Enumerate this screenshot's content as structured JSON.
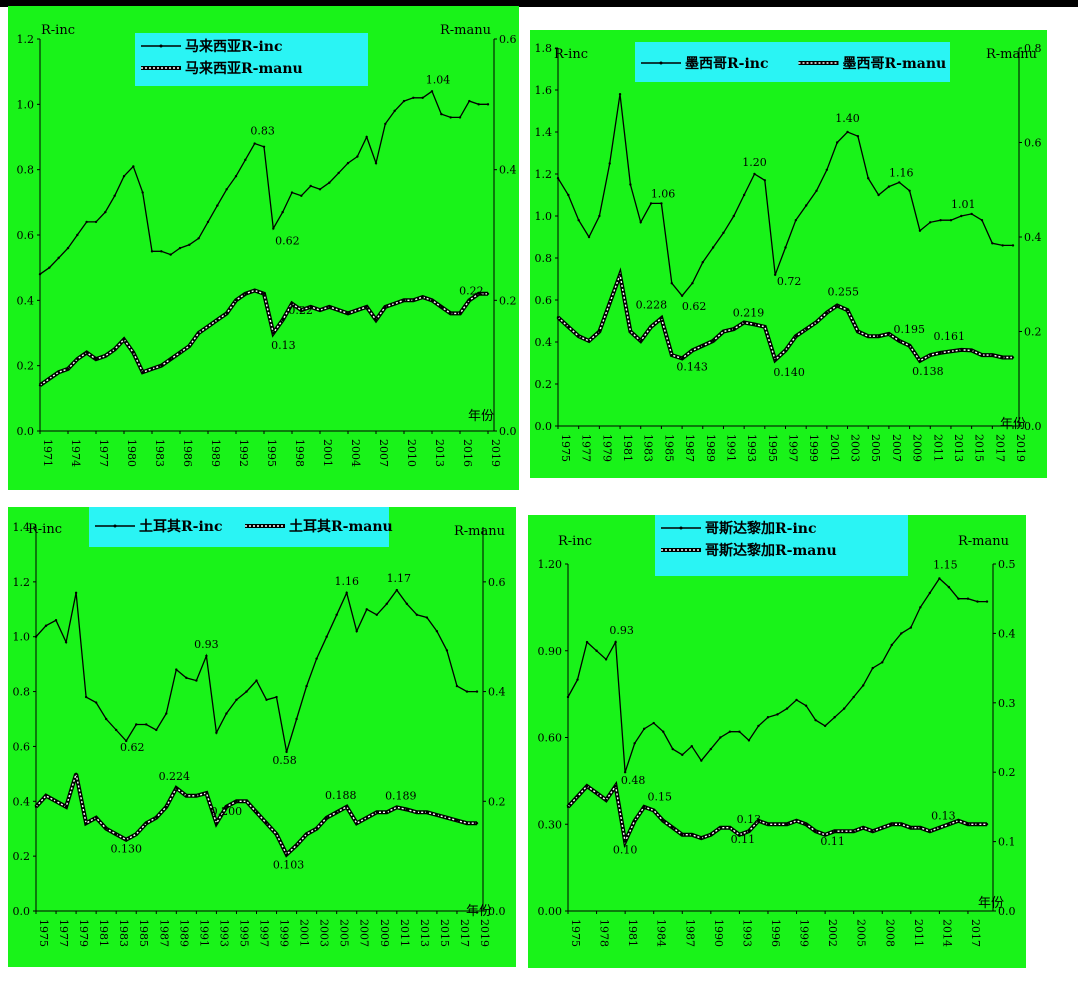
{
  "colors": {
    "panel_bg": "#19f319",
    "legend_bg": "#2af4f4",
    "line": "#000000",
    "manu_line": "#000000",
    "manu_dash": "#ffffff"
  },
  "chart_data": [
    {
      "type": "line",
      "left_axis": {
        "title": "R-inc",
        "ylim": [
          0,
          1.2
        ],
        "ticks": [
          "0.0",
          "0.2",
          "0.4",
          "0.6",
          "0.8",
          "1.0",
          "1.2"
        ]
      },
      "right_axis": {
        "title": "R-manu",
        "ylim": [
          0,
          0.6
        ],
        "ticks": [
          "0.0",
          "0.2",
          "0.4",
          "0.6"
        ]
      },
      "x_title": "年份",
      "x": [
        1971,
        1972,
        1973,
        1974,
        1975,
        1976,
        1977,
        1978,
        1979,
        1980,
        1981,
        1982,
        1983,
        1984,
        1985,
        1986,
        1987,
        1988,
        1989,
        1990,
        1991,
        1992,
        1993,
        1994,
        1995,
        1996,
        1997,
        1998,
        1999,
        2000,
        2001,
        2002,
        2003,
        2004,
        2005,
        2006,
        2007,
        2008,
        2009,
        2010,
        2011,
        2012,
        2013,
        2014,
        2015,
        2016,
        2017,
        2018,
        2019
      ],
      "x_ticks": [
        "1971",
        "1974",
        "1977",
        "1980",
        "1983",
        "1986",
        "1989",
        "1992",
        "1995",
        "1998",
        "2001",
        "2004",
        "2007",
        "2010",
        "2013",
        "2016",
        "2019"
      ],
      "series": [
        {
          "name": "马来西亚R-inc",
          "axis": "left",
          "values": [
            0.48,
            0.5,
            0.53,
            0.56,
            0.6,
            0.64,
            0.64,
            0.67,
            0.72,
            0.78,
            0.81,
            0.73,
            0.55,
            0.55,
            0.54,
            0.56,
            0.57,
            0.59,
            0.64,
            0.69,
            0.74,
            0.78,
            0.83,
            0.88,
            0.87,
            0.62,
            0.67,
            0.73,
            0.72,
            0.75,
            0.74,
            0.76,
            0.79,
            0.82,
            0.84,
            0.9,
            0.82,
            0.94,
            0.98,
            1.01,
            1.02,
            1.02,
            1.04,
            0.97,
            0.96,
            0.96,
            1.01,
            1.0,
            1.0
          ]
        },
        {
          "name": "马来西亚R-manu",
          "axis": "right",
          "values": [
            0.07,
            0.08,
            0.09,
            0.095,
            0.11,
            0.12,
            0.11,
            0.115,
            0.125,
            0.14,
            0.12,
            0.09,
            0.095,
            0.1,
            0.11,
            0.12,
            0.13,
            0.15,
            0.16,
            0.17,
            0.18,
            0.2,
            0.21,
            0.215,
            0.21,
            0.15,
            0.17,
            0.195,
            0.185,
            0.19,
            0.185,
            0.19,
            0.185,
            0.18,
            0.185,
            0.19,
            0.17,
            0.19,
            0.195,
            0.2,
            0.2,
            0.205,
            0.2,
            0.19,
            0.18,
            0.18,
            0.2,
            0.21,
            0.21
          ]
        }
      ],
      "labels": [
        "0.83",
        "0.62",
        "1.04",
        "0.22",
        "0.13",
        "0.22"
      ]
    },
    {
      "type": "line",
      "left_axis": {
        "title": "R-inc",
        "ylim": [
          0,
          1.8
        ],
        "ticks": [
          "0.0",
          "0.2",
          "0.4",
          "0.6",
          "0.8",
          "1.0",
          "1.2",
          "1.4",
          "1.6",
          "1.8"
        ]
      },
      "right_axis": {
        "title": "R-manu",
        "ylim": [
          0,
          0.8
        ],
        "ticks": [
          "0.0",
          "0.2",
          "0.4",
          "0.6",
          "0.8"
        ]
      },
      "x_title": "年份",
      "x": [
        1975,
        1976,
        1977,
        1978,
        1979,
        1980,
        1981,
        1982,
        1983,
        1984,
        1985,
        1986,
        1987,
        1988,
        1989,
        1990,
        1991,
        1992,
        1993,
        1994,
        1995,
        1996,
        1997,
        1998,
        1999,
        2000,
        2001,
        2002,
        2003,
        2004,
        2005,
        2006,
        2007,
        2008,
        2009,
        2010,
        2011,
        2012,
        2013,
        2014,
        2015,
        2016,
        2017,
        2018,
        2019
      ],
      "x_ticks": [
        "1975",
        "1977",
        "1979",
        "1981",
        "1983",
        "1985",
        "1987",
        "1989",
        "1991",
        "1993",
        "1995",
        "1997",
        "1999",
        "2001",
        "2003",
        "2005",
        "2007",
        "2009",
        "2011",
        "2013",
        "2015",
        "2017",
        "2019"
      ],
      "series": [
        {
          "name": "墨西哥R-inc",
          "axis": "left",
          "values": [
            1.18,
            1.1,
            0.98,
            0.9,
            1.0,
            1.25,
            1.58,
            1.15,
            0.97,
            1.06,
            1.06,
            0.68,
            0.62,
            0.68,
            0.78,
            0.85,
            0.92,
            1.0,
            1.1,
            1.2,
            1.17,
            0.72,
            0.85,
            0.98,
            1.05,
            1.12,
            1.22,
            1.35,
            1.4,
            1.38,
            1.18,
            1.1,
            1.14,
            1.16,
            1.12,
            0.93,
            0.97,
            0.98,
            0.98,
            1.0,
            1.01,
            0.98,
            0.87,
            0.86,
            0.86
          ]
        },
        {
          "name": "墨西哥R-manu",
          "axis": "right",
          "values": [
            0.23,
            0.21,
            0.19,
            0.18,
            0.2,
            0.26,
            0.32,
            0.2,
            0.18,
            0.21,
            0.228,
            0.15,
            0.143,
            0.16,
            0.17,
            0.18,
            0.2,
            0.205,
            0.219,
            0.215,
            0.21,
            0.14,
            0.16,
            0.19,
            0.205,
            0.22,
            0.24,
            0.255,
            0.245,
            0.2,
            0.19,
            0.19,
            0.195,
            0.18,
            0.17,
            0.138,
            0.15,
            0.155,
            0.158,
            0.161,
            0.16,
            0.15,
            0.15,
            0.145,
            0.145
          ]
        }
      ],
      "labels": [
        "1.06",
        "0.62",
        "1.20",
        "0.72",
        "1.40",
        "1.16",
        "1.01",
        "0.228",
        "0.143",
        "0.219",
        "0.140",
        "0.255",
        "0.195",
        "0.138",
        "0.161"
      ]
    },
    {
      "type": "line",
      "left_axis": {
        "title": "R-inc",
        "ylim": [
          0,
          1.4
        ],
        "ticks": [
          "0.0",
          "0.2",
          "0.4",
          "0.6",
          "0.8",
          "1.0",
          "1.2",
          "1.4"
        ]
      },
      "right_axis": {
        "title": "R-manu",
        "ylim": [
          0,
          0.7
        ],
        "ticks": [
          "0.0",
          "0.2",
          "0.4",
          "0.6"
        ]
      },
      "x_title": "年份",
      "x": [
        1975,
        1976,
        1977,
        1978,
        1979,
        1980,
        1981,
        1982,
        1983,
        1984,
        1985,
        1986,
        1987,
        1988,
        1989,
        1990,
        1991,
        1992,
        1993,
        1994,
        1995,
        1996,
        1997,
        1998,
        1999,
        2000,
        2001,
        2002,
        2003,
        2004,
        2005,
        2006,
        2007,
        2008,
        2009,
        2010,
        2011,
        2012,
        2013,
        2014,
        2015,
        2016,
        2017,
        2018,
        2019
      ],
      "x_ticks": [
        "1975",
        "1977",
        "1979",
        "1981",
        "1983",
        "1985",
        "1987",
        "1989",
        "1991",
        "1993",
        "1995",
        "1997",
        "1999",
        "2001",
        "2003",
        "2005",
        "2007",
        "2009",
        "2011",
        "2013",
        "2015",
        "2017",
        "2019"
      ],
      "series": [
        {
          "name": "土耳其R-inc",
          "axis": "left",
          "values": [
            1.0,
            1.04,
            1.06,
            0.98,
            1.16,
            0.78,
            0.76,
            0.7,
            0.66,
            0.62,
            0.68,
            0.68,
            0.66,
            0.72,
            0.88,
            0.85,
            0.84,
            0.93,
            0.65,
            0.72,
            0.77,
            0.8,
            0.84,
            0.77,
            0.78,
            0.58,
            0.7,
            0.82,
            0.92,
            1.0,
            1.08,
            1.16,
            1.02,
            1.1,
            1.08,
            1.12,
            1.17,
            1.12,
            1.08,
            1.07,
            1.02,
            0.95,
            0.82,
            0.8,
            0.8
          ]
        },
        {
          "name": "土耳其R-manu",
          "axis": "right",
          "values": [
            0.19,
            0.21,
            0.2,
            0.19,
            0.25,
            0.16,
            0.17,
            0.15,
            0.14,
            0.13,
            0.14,
            0.16,
            0.17,
            0.19,
            0.224,
            0.21,
            0.21,
            0.215,
            0.16,
            0.19,
            0.2,
            0.2,
            0.18,
            0.16,
            0.14,
            0.103,
            0.12,
            0.14,
            0.15,
            0.17,
            0.18,
            0.19,
            0.16,
            0.17,
            0.18,
            0.18,
            0.189,
            0.185,
            0.18,
            0.18,
            0.175,
            0.17,
            0.165,
            0.16,
            0.16
          ]
        }
      ],
      "labels": [
        "0.62",
        "0.93",
        "0.58",
        "1.16",
        "1.17",
        "0.130",
        "0.224",
        "0.200",
        "0.103",
        "0.188",
        "0.189"
      ]
    },
    {
      "type": "line",
      "left_axis": {
        "title": "R-inc",
        "ylim": [
          0,
          1.2
        ],
        "ticks": [
          "0.00",
          "0.30",
          "0.60",
          "0.90",
          "1.20"
        ]
      },
      "right_axis": {
        "title": "R-manu",
        "ylim": [
          0,
          0.5
        ],
        "ticks": [
          "0.0",
          "0.1",
          "0.2",
          "0.3",
          "0.4",
          "0.5"
        ]
      },
      "x_title": "年份",
      "x": [
        1975,
        1976,
        1977,
        1978,
        1979,
        1980,
        1981,
        1982,
        1983,
        1984,
        1985,
        1986,
        1987,
        1988,
        1989,
        1990,
        1991,
        1992,
        1993,
        1994,
        1995,
        1996,
        1997,
        1998,
        1999,
        2000,
        2001,
        2002,
        2003,
        2004,
        2005,
        2006,
        2007,
        2008,
        2009,
        2010,
        2011,
        2012,
        2013,
        2014,
        2015,
        2016,
        2017,
        2018,
        2019
      ],
      "x_ticks": [
        "1975",
        "1978",
        "1981",
        "1984",
        "1987",
        "1990",
        "1993",
        "1996",
        "1999",
        "2002",
        "2005",
        "2008",
        "2011",
        "2014",
        "2017"
      ],
      "series": [
        {
          "name": "哥斯达黎加R-inc",
          "axis": "left",
          "values": [
            0.74,
            0.8,
            0.93,
            0.9,
            0.87,
            0.93,
            0.48,
            0.58,
            0.63,
            0.65,
            0.62,
            0.56,
            0.54,
            0.57,
            0.52,
            0.56,
            0.6,
            0.62,
            0.62,
            0.59,
            0.64,
            0.67,
            0.68,
            0.7,
            0.73,
            0.71,
            0.66,
            0.64,
            0.67,
            0.7,
            0.74,
            0.78,
            0.84,
            0.86,
            0.92,
            0.96,
            0.98,
            1.05,
            1.1,
            1.15,
            1.12,
            1.08,
            1.08,
            1.07,
            1.07
          ]
        },
        {
          "name": "哥斯达黎加R-manu",
          "axis": "right",
          "values": [
            0.15,
            0.165,
            0.18,
            0.17,
            0.16,
            0.18,
            0.1,
            0.13,
            0.15,
            0.145,
            0.13,
            0.12,
            0.11,
            0.11,
            0.105,
            0.11,
            0.12,
            0.12,
            0.11,
            0.115,
            0.13,
            0.125,
            0.125,
            0.125,
            0.13,
            0.125,
            0.115,
            0.11,
            0.115,
            0.115,
            0.115,
            0.12,
            0.115,
            0.12,
            0.125,
            0.125,
            0.12,
            0.12,
            0.115,
            0.12,
            0.125,
            0.13,
            0.125,
            0.125,
            0.125
          ]
        }
      ],
      "labels": [
        "0.93",
        "1.15",
        "0.48",
        "0.10",
        "0.15",
        "0.13",
        "0.11",
        "0.11",
        "0.13"
      ]
    }
  ]
}
